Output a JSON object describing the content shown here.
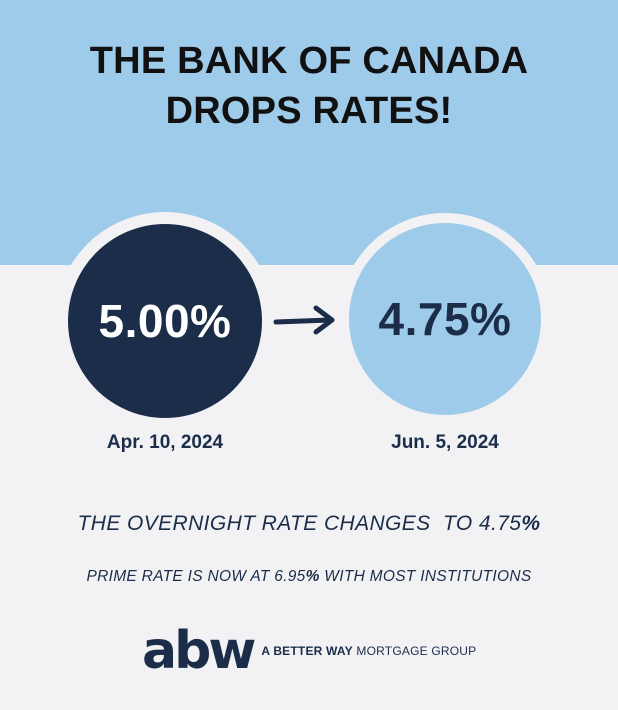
{
  "header": {
    "title_line1": "THE BANK OF CANADA",
    "title_line2": "DROPS RATES!"
  },
  "rates": {
    "previous": {
      "value": "5.00%",
      "date": "Apr. 10, 2024"
    },
    "current": {
      "value": "4.75%",
      "date": "Jun. 5, 2024"
    }
  },
  "overnight": {
    "text": "THE OVERNIGHT RATE CHANGES  TO 4.75",
    "suffix": "%"
  },
  "prime": {
    "prefix": "PRIME RATE IS NOW AT 6.95",
    "percent": "%",
    "suffix": " WITH MOST INSTITUTIONS"
  },
  "logo": {
    "mark": "abw",
    "tag_bold": "A BETTER WAY",
    "tag_rest": " MORTGAGE GROUP"
  },
  "colors": {
    "sky": "#9fcbea",
    "navy": "#1b2d49",
    "background": "#f2f2f4"
  },
  "icons": {
    "arrow": "arrow-right-icon"
  }
}
